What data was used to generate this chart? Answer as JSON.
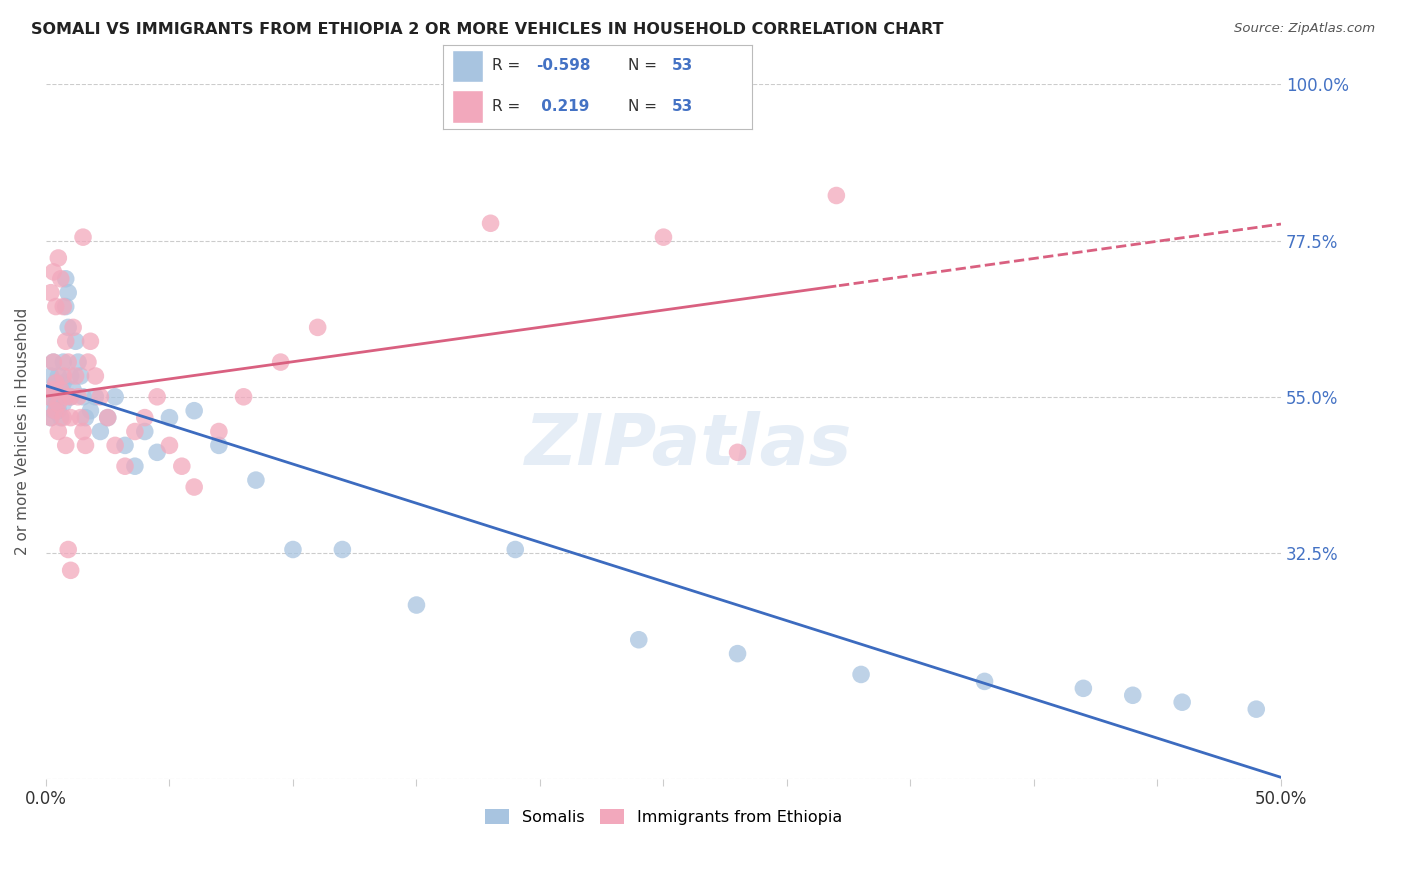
{
  "title": "SOMALI VS IMMIGRANTS FROM ETHIOPIA 2 OR MORE VEHICLES IN HOUSEHOLD CORRELATION CHART",
  "source": "Source: ZipAtlas.com",
  "ylabel_label": "2 or more Vehicles in Household",
  "x_min": 0.0,
  "x_max": 0.5,
  "y_min": 0.0,
  "y_max": 1.0,
  "y_ticks": [
    0.0,
    0.325,
    0.55,
    0.775,
    1.0
  ],
  "y_tick_labels": [
    "",
    "32.5%",
    "55.0%",
    "77.5%",
    "100.0%"
  ],
  "x_ticks": [
    0.0,
    0.05,
    0.1,
    0.15,
    0.2,
    0.25,
    0.3,
    0.35,
    0.4,
    0.45,
    0.5
  ],
  "grid_color": "#cccccc",
  "background_color": "#ffffff",
  "somali_color": "#a8c4e0",
  "ethiopia_color": "#f2a8bc",
  "somali_line_color": "#3c6bbf",
  "ethiopia_line_color": "#d96080",
  "somali_R": -0.598,
  "somali_N": 53,
  "ethiopia_R": 0.219,
  "ethiopia_N": 53,
  "legend_label_1": "Somalis",
  "legend_label_2": "Immigrants from Ethiopia",
  "watermark": "ZIPatlas",
  "somali_x": [
    0.001,
    0.002,
    0.002,
    0.003,
    0.003,
    0.003,
    0.004,
    0.004,
    0.005,
    0.005,
    0.005,
    0.006,
    0.006,
    0.007,
    0.007,
    0.007,
    0.008,
    0.008,
    0.009,
    0.009,
    0.01,
    0.01,
    0.011,
    0.012,
    0.013,
    0.014,
    0.015,
    0.016,
    0.018,
    0.02,
    0.022,
    0.025,
    0.028,
    0.032,
    0.036,
    0.04,
    0.045,
    0.05,
    0.06,
    0.07,
    0.085,
    0.1,
    0.12,
    0.15,
    0.19,
    0.24,
    0.28,
    0.33,
    0.38,
    0.42,
    0.44,
    0.46,
    0.49
  ],
  "somali_y": [
    0.55,
    0.58,
    0.52,
    0.6,
    0.56,
    0.53,
    0.57,
    0.54,
    0.58,
    0.55,
    0.53,
    0.56,
    0.52,
    0.6,
    0.57,
    0.54,
    0.68,
    0.72,
    0.7,
    0.65,
    0.58,
    0.55,
    0.56,
    0.63,
    0.6,
    0.58,
    0.55,
    0.52,
    0.53,
    0.55,
    0.5,
    0.52,
    0.55,
    0.48,
    0.45,
    0.5,
    0.47,
    0.52,
    0.53,
    0.48,
    0.43,
    0.33,
    0.33,
    0.25,
    0.33,
    0.2,
    0.18,
    0.15,
    0.14,
    0.13,
    0.12,
    0.11,
    0.1
  ],
  "ethiopia_x": [
    0.001,
    0.002,
    0.003,
    0.003,
    0.004,
    0.004,
    0.005,
    0.005,
    0.006,
    0.007,
    0.007,
    0.008,
    0.008,
    0.009,
    0.01,
    0.01,
    0.011,
    0.012,
    0.013,
    0.014,
    0.015,
    0.016,
    0.017,
    0.018,
    0.02,
    0.022,
    0.025,
    0.028,
    0.032,
    0.036,
    0.04,
    0.045,
    0.05,
    0.055,
    0.06,
    0.07,
    0.08,
    0.095,
    0.11,
    0.002,
    0.003,
    0.004,
    0.005,
    0.006,
    0.007,
    0.008,
    0.009,
    0.01,
    0.28,
    0.25,
    0.32,
    0.18,
    0.015
  ],
  "ethiopia_y": [
    0.55,
    0.52,
    0.6,
    0.56,
    0.53,
    0.57,
    0.5,
    0.54,
    0.56,
    0.52,
    0.58,
    0.55,
    0.48,
    0.6,
    0.55,
    0.52,
    0.65,
    0.58,
    0.55,
    0.52,
    0.5,
    0.48,
    0.6,
    0.63,
    0.58,
    0.55,
    0.52,
    0.48,
    0.45,
    0.5,
    0.52,
    0.55,
    0.48,
    0.45,
    0.42,
    0.5,
    0.55,
    0.6,
    0.65,
    0.7,
    0.73,
    0.68,
    0.75,
    0.72,
    0.68,
    0.63,
    0.33,
    0.3,
    0.47,
    0.78,
    0.84,
    0.8,
    0.78
  ]
}
